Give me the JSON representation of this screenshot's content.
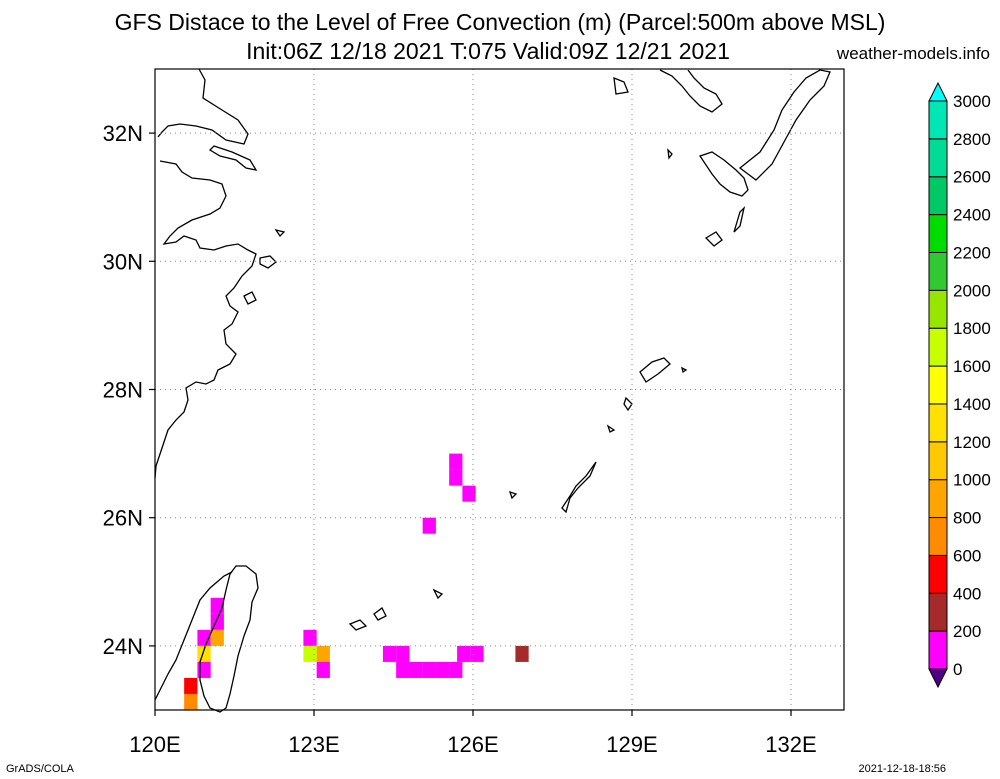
{
  "title": "GFS Distace to the Level of Free Convection (m) (Parcel:500m above MSL)",
  "subtitle": "Init:06Z 12/18 2021 T:075 Valid:09Z 12/21 2021",
  "site": "weather-models.info",
  "credit": "GrADS/COLA",
  "timestamp": "2021-12-18-18:56",
  "chart_data": {
    "type": "heatmap",
    "title": "GFS Distace to the Level of Free Convection (m) (Parcel:500m above MSL)",
    "subtitle": "Init:06Z 12/18 2021 T:075 Valid:09Z 12/21 2021",
    "x_label": "",
    "y_label": "",
    "xlim": [
      120,
      133
    ],
    "ylim": [
      23,
      33
    ],
    "x_ticks": [
      120,
      123,
      126,
      129,
      132
    ],
    "x_tick_labels": [
      "120E",
      "123E",
      "126E",
      "129E",
      "132E"
    ],
    "y_ticks": [
      24,
      26,
      28,
      30,
      32
    ],
    "y_tick_labels": [
      "24N",
      "26N",
      "28N",
      "30N",
      "32N"
    ],
    "grid": true,
    "colorbar": {
      "placement": "right",
      "levels": [
        0,
        200,
        400,
        600,
        800,
        1000,
        1200,
        1400,
        1600,
        1800,
        2000,
        2200,
        2400,
        2600,
        2800,
        3000
      ],
      "labels": [
        "0",
        "200",
        "400",
        "600",
        "800",
        "1000",
        "1200",
        "1400",
        "1600",
        "1800",
        "2000",
        "2200",
        "2400",
        "2600",
        "2800",
        "3000"
      ],
      "colors": [
        "#4b0082",
        "#ff00ff",
        "#a52a2a",
        "#ff0000",
        "#ff8c00",
        "#ffa500",
        "#ffc800",
        "#ffe000",
        "#ffff00",
        "#c8ff00",
        "#96e600",
        "#32c832",
        "#00dc00",
        "#00c864",
        "#00dc96",
        "#00e6b4",
        "#00ffff"
      ]
    },
    "cells": [
      {
        "lon": 125.55,
        "lat": 26.75,
        "w": 0.25,
        "h": 0.25,
        "value": 0
      },
      {
        "lon": 125.55,
        "lat": 26.5,
        "w": 0.25,
        "h": 0.25,
        "value": 0
      },
      {
        "lon": 125.8,
        "lat": 26.25,
        "w": 0.25,
        "h": 0.25,
        "value": 0
      },
      {
        "lon": 125.05,
        "lat": 25.75,
        "w": 0.25,
        "h": 0.25,
        "value": 0
      },
      {
        "lon": 121.05,
        "lat": 24.5,
        "w": 0.25,
        "h": 0.25,
        "value": 0
      },
      {
        "lon": 121.05,
        "lat": 24.25,
        "w": 0.25,
        "h": 0.25,
        "value": 100
      },
      {
        "lon": 120.8,
        "lat": 24.0,
        "w": 0.25,
        "h": 0.25,
        "value": 100
      },
      {
        "lon": 121.05,
        "lat": 24.0,
        "w": 0.25,
        "h": 0.25,
        "value": 800
      },
      {
        "lon": 120.8,
        "lat": 23.75,
        "w": 0.25,
        "h": 0.25,
        "value": 1200
      },
      {
        "lon": 120.8,
        "lat": 23.5,
        "w": 0.25,
        "h": 0.25,
        "value": 100
      },
      {
        "lon": 120.55,
        "lat": 23.25,
        "w": 0.25,
        "h": 0.25,
        "value": 400
      },
      {
        "lon": 120.55,
        "lat": 23.0,
        "w": 0.25,
        "h": 0.25,
        "value": 600
      },
      {
        "lon": 122.8,
        "lat": 24.0,
        "w": 0.25,
        "h": 0.25,
        "value": 100
      },
      {
        "lon": 122.8,
        "lat": 23.75,
        "w": 0.25,
        "h": 0.25,
        "value": 1600
      },
      {
        "lon": 123.05,
        "lat": 23.75,
        "w": 0.25,
        "h": 0.25,
        "value": 900
      },
      {
        "lon": 123.05,
        "lat": 23.5,
        "w": 0.25,
        "h": 0.25,
        "value": 0
      },
      {
        "lon": 124.3,
        "lat": 23.75,
        "w": 0.25,
        "h": 0.25,
        "value": 0
      },
      {
        "lon": 124.55,
        "lat": 23.75,
        "w": 0.25,
        "h": 0.25,
        "value": 0
      },
      {
        "lon": 124.55,
        "lat": 23.5,
        "w": 0.25,
        "h": 0.25,
        "value": 0
      },
      {
        "lon": 124.8,
        "lat": 23.5,
        "w": 0.25,
        "h": 0.25,
        "value": 100
      },
      {
        "lon": 125.05,
        "lat": 23.5,
        "w": 0.25,
        "h": 0.25,
        "value": 100
      },
      {
        "lon": 125.3,
        "lat": 23.5,
        "w": 0.25,
        "h": 0.25,
        "value": 100
      },
      {
        "lon": 125.55,
        "lat": 23.5,
        "w": 0.25,
        "h": 0.25,
        "value": 100
      },
      {
        "lon": 125.7,
        "lat": 23.75,
        "w": 0.25,
        "h": 0.25,
        "value": 0
      },
      {
        "lon": 125.95,
        "lat": 23.75,
        "w": 0.25,
        "h": 0.25,
        "value": 100
      },
      {
        "lon": 126.8,
        "lat": 23.75,
        "w": 0.25,
        "h": 0.25,
        "value": 300
      }
    ]
  }
}
